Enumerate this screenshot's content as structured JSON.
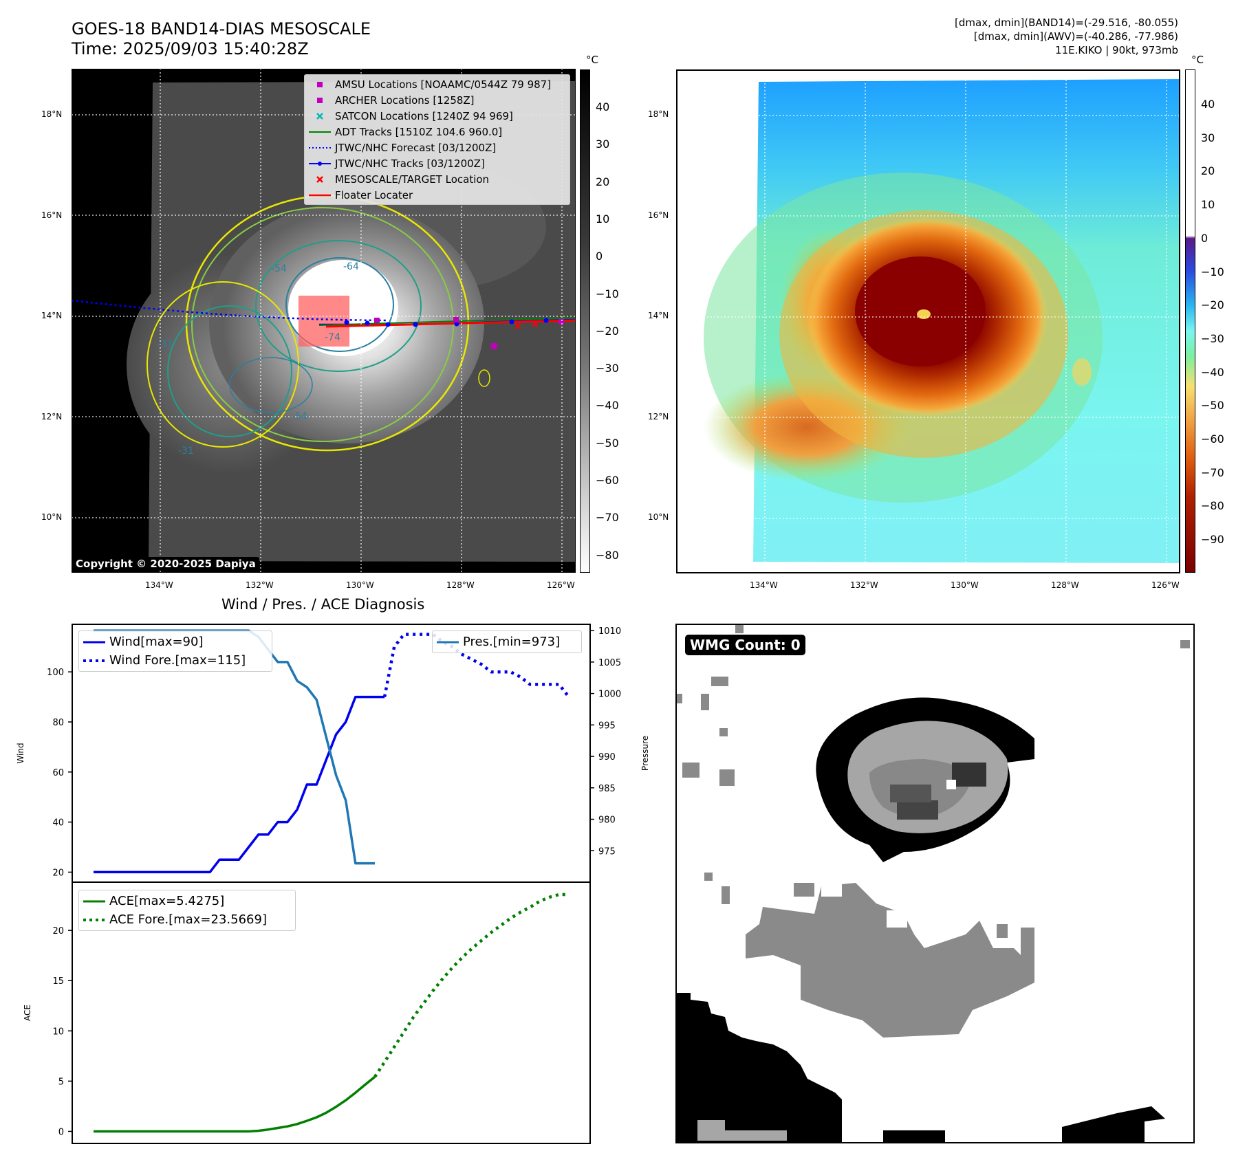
{
  "header": {
    "title_line1": "GOES-18 BAND14-DIAS MESOSCALE",
    "title_line2": "Time: 2025/09/03 15:40:28Z",
    "info_line1": "[dmax, dmin](BAND14)=(-29.516, -80.055)",
    "info_line2": "[dmax, dmin](AWV)=(-40.286, -77.986)",
    "info_line3": "11E.KIKO | 90kt, 973mb"
  },
  "map": {
    "lat_labels": [
      "18°N",
      "16°N",
      "14°N",
      "12°N",
      "10°N"
    ],
    "lon_labels": [
      "134°W",
      "132°W",
      "130°W",
      "128°W",
      "126°W"
    ],
    "copyright": "Copyright © 2020-2025 Dapiya",
    "contour_labels": [
      "-54",
      "-64",
      "-31",
      "-31",
      "-74",
      "-54"
    ]
  },
  "legend": {
    "items": [
      {
        "label": "AMSU Locations [NOAAMC/0544Z 79 987]",
        "marker": "square",
        "color": "#c000c0"
      },
      {
        "label": "ARCHER Locations [1258Z]",
        "marker": "square",
        "color": "#c000c0"
      },
      {
        "label": "SATCON Locations [1240Z 94 969]",
        "marker": "x",
        "color": "#00b4b4"
      },
      {
        "label": "ADT Tracks [1510Z 104.6 960.0]",
        "marker": "line",
        "color": "#008000"
      },
      {
        "label": "JTWC/NHC Forecast [03/1200Z]",
        "marker": "dotted",
        "color": "#0000ff"
      },
      {
        "label": "JTWC/NHC Tracks [03/1200Z]",
        "marker": "line-dot",
        "color": "#0000ff"
      },
      {
        "label": "MESOSCALE/TARGET Location",
        "marker": "x",
        "color": "#ff0000"
      },
      {
        "label": "Floater Locater",
        "marker": "line",
        "color": "#ff0000"
      }
    ]
  },
  "colorbar_left": {
    "unit": "°C",
    "ticks": [
      "40",
      "30",
      "20",
      "10",
      "0",
      "−10",
      "−20",
      "−30",
      "−40",
      "−50",
      "−60",
      "−70",
      "−80"
    ]
  },
  "colorbar_right": {
    "unit": "°C",
    "ticks": [
      "40",
      "30",
      "20",
      "10",
      "0",
      "−10",
      "−20",
      "−30",
      "−40",
      "−50",
      "−60",
      "−70",
      "−80",
      "−90"
    ]
  },
  "colors": {
    "wind": "#0000ee",
    "pressure": "#1f77b4",
    "ace": "#007f00"
  },
  "wmg": {
    "label": "WMG Count: 0"
  },
  "chart_data": [
    {
      "type": "line",
      "title": "Wind / Pres. / ACE Diagnosis",
      "xlabel": "",
      "ylabel": "Wind",
      "ylabel_right": "Pressure",
      "ylim": [
        16,
        119
      ],
      "ylim_right": [
        970,
        1011
      ],
      "yticks": [
        20,
        40,
        60,
        80,
        100
      ],
      "yticks_right": [
        975,
        980,
        985,
        990,
        995,
        1000,
        1005,
        1010
      ],
      "x_index": [
        0,
        1,
        2,
        3,
        4,
        5,
        6,
        7,
        8,
        9,
        10,
        11,
        12,
        13,
        14,
        15,
        16,
        17,
        18,
        19,
        20,
        21,
        22,
        23,
        24,
        25,
        26,
        27,
        28,
        29,
        30,
        31,
        32,
        33,
        34,
        35,
        36,
        37,
        38,
        39,
        40,
        41,
        42,
        43,
        44,
        45,
        46,
        47,
        48,
        49
      ],
      "series": [
        {
          "name": "Wind[max=90]",
          "style": "solid",
          "axis": "left",
          "values": [
            20,
            20,
            20,
            20,
            20,
            20,
            20,
            20,
            20,
            20,
            20,
            20,
            20,
            25,
            25,
            25,
            30,
            35,
            35,
            40,
            40,
            45,
            55,
            55,
            65,
            75,
            80,
            90,
            90,
            90,
            90
          ]
        },
        {
          "name": "Wind Fore.[max=115]",
          "style": "dotted",
          "axis": "left",
          "values": [
            null,
            null,
            null,
            null,
            null,
            null,
            null,
            null,
            null,
            null,
            null,
            null,
            null,
            null,
            null,
            null,
            null,
            null,
            null,
            null,
            null,
            null,
            null,
            null,
            null,
            null,
            null,
            null,
            null,
            null,
            90,
            110,
            115,
            115,
            115,
            115,
            112,
            110,
            107,
            105,
            103,
            100,
            100,
            100,
            98,
            95,
            95,
            95,
            95,
            90
          ]
        },
        {
          "name": "Pres.[min=973]",
          "style": "solid",
          "axis": "right",
          "values": [
            1010,
            1010,
            1010,
            1010,
            1010,
            1010,
            1010,
            1010,
            1010,
            1010,
            1010,
            1010,
            1010,
            1010,
            1010,
            1010,
            1010,
            1009,
            1007,
            1005,
            1005,
            1002,
            1001,
            999,
            993,
            987,
            983,
            973,
            973,
            973
          ]
        }
      ]
    },
    {
      "type": "line",
      "xlabel": "",
      "ylabel": "ACE",
      "ylim": [
        -1.2,
        24.8
      ],
      "yticks": [
        0,
        5,
        10,
        15,
        20
      ],
      "x_index": [
        0,
        1,
        2,
        3,
        4,
        5,
        6,
        7,
        8,
        9,
        10,
        11,
        12,
        13,
        14,
        15,
        16,
        17,
        18,
        19,
        20,
        21,
        22,
        23,
        24,
        25,
        26,
        27,
        28,
        29,
        30,
        31,
        32,
        33,
        34,
        35,
        36,
        37,
        38,
        39,
        40,
        41,
        42,
        43,
        44,
        45,
        46,
        47,
        48,
        49
      ],
      "series": [
        {
          "name": "ACE[max=5.4275]",
          "style": "solid",
          "values": [
            0,
            0,
            0,
            0,
            0,
            0,
            0,
            0,
            0,
            0,
            0,
            0,
            0,
            0,
            0,
            0,
            0,
            0.06,
            0.18,
            0.34,
            0.5,
            0.73,
            1.05,
            1.4,
            1.86,
            2.45,
            3.1,
            3.85,
            4.65,
            5.4275
          ]
        },
        {
          "name": "ACE Fore.[max=23.5669]",
          "style": "dotted",
          "values": [
            null,
            null,
            null,
            null,
            null,
            null,
            null,
            null,
            null,
            null,
            null,
            null,
            null,
            null,
            null,
            null,
            null,
            null,
            null,
            null,
            null,
            null,
            null,
            null,
            null,
            null,
            null,
            null,
            null,
            5.4275,
            6.9,
            8.4,
            9.9,
            11.4,
            12.7,
            14.0,
            15.2,
            16.3,
            17.3,
            18.2,
            19.0,
            19.8,
            20.5,
            21.2,
            21.8,
            22.3,
            22.9,
            23.3,
            23.5669,
            23.5669
          ]
        }
      ]
    }
  ]
}
